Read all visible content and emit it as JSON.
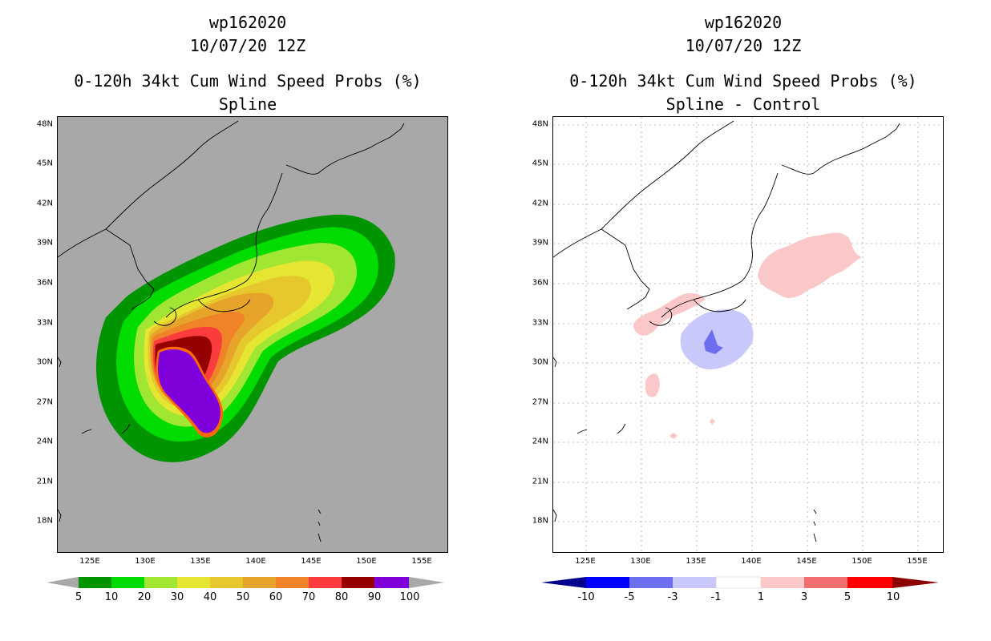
{
  "left": {
    "title_line1": "wp162020",
    "title_line2": "10/07/20 12Z",
    "title_line3": "0-120h 34kt Cum Wind Speed Probs (%)",
    "title_line4": "Spline",
    "colorbar_labels": [
      "5",
      "10",
      "20",
      "30",
      "40",
      "50",
      "60",
      "70",
      "80",
      "90",
      "100"
    ],
    "colorbar_colors": [
      "#009400",
      "#00dc00",
      "#a0e632",
      "#e6e632",
      "#e6c82e",
      "#e6a42a",
      "#f08228",
      "#fa3c3c",
      "#960000",
      "#8000dc"
    ]
  },
  "right": {
    "title_line1": "wp162020",
    "title_line2": "10/07/20 12Z",
    "title_line3": "0-120h 34kt Cum Wind Speed Probs (%)",
    "title_line4": "Spline - Control",
    "colorbar_labels": [
      "-10",
      "-5",
      "-3",
      "-1",
      "1",
      "3",
      "5",
      "10"
    ],
    "colorbar_colors": [
      "#0000c8",
      "#0000ff",
      "#6e6ef0",
      "#c8c8fa",
      "#ffffff",
      "#fac8c8",
      "#f06e6e",
      "#ff0000",
      "#c80000"
    ],
    "colorbar_end_colors": [
      "#00008c",
      "#8c0000"
    ]
  },
  "axes": {
    "lat_labels": [
      "48N",
      "45N",
      "42N",
      "39N",
      "36N",
      "33N",
      "30N",
      "27N",
      "24N",
      "21N",
      "18N"
    ],
    "lon_labels": [
      "125E",
      "130E",
      "135E",
      "140E",
      "145E",
      "150E",
      "155E"
    ]
  },
  "colors": {
    "land_bg": "#a8a8a8",
    "coast": "#000000"
  }
}
